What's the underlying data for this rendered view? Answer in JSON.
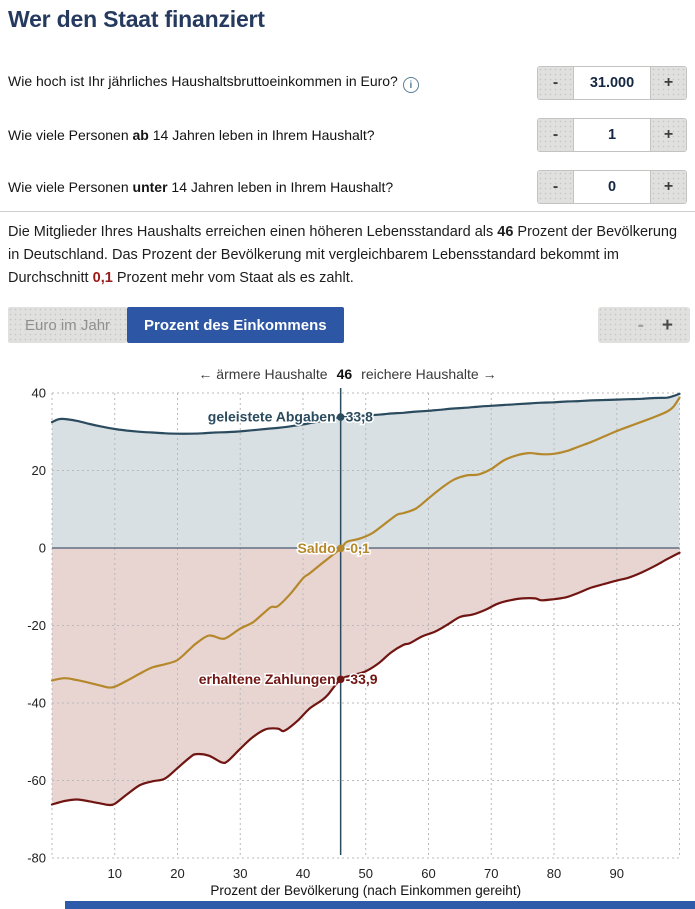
{
  "title": "Wer den Staat finanziert",
  "ui": {
    "minus": "-",
    "plus": "+",
    "info_icon": "i"
  },
  "questions": [
    {
      "pre": "Wie hoch ist Ihr jährliches Haushaltsbruttoeinkommen in Euro?",
      "bold": "",
      "post": "",
      "value": "31.000"
    },
    {
      "pre": "Wie viele Personen ",
      "bold": "ab",
      "post": " 14 Jahren leben in Ihrem Haushalt?",
      "value": "1"
    },
    {
      "pre": "Wie viele Personen ",
      "bold": "unter",
      "post": " 14 Jahren leben in Ihrem Haushalt?",
      "value": "0"
    }
  ],
  "summary": {
    "part1": "Die Mitglieder Ihres Haushalts erreichen einen höheren Lebensstandard als ",
    "bold1": "46",
    "part2": " Prozent der Bevölkerung in Deutschland. Das Prozent der Bevölkerung mit vergleichbarem Lebensstandard bekommt im Durchschnitt ",
    "bold2_red": "0,1",
    "part3": " Prozent mehr vom Staat als es zahlt."
  },
  "view_toggle": {
    "options": [
      {
        "label": "Euro im Jahr",
        "active": false
      },
      {
        "label": "Prozent des Einkommens",
        "active": true
      }
    ]
  },
  "zoom_control": {
    "minus_label": "-",
    "plus_label": "+"
  },
  "colors": {
    "accent_blue": "#2d56a4",
    "title_navy": "#253a5e",
    "red_highlight": "#9a1a1a"
  },
  "chart_data": {
    "type": "line",
    "header": {
      "left": "← ärmere Haushalte",
      "value": "46",
      "right": "reichere Haushalte →"
    },
    "xlabel": "Prozent der Bevölkerung (nach Einkommen gereiht)",
    "xlim": [
      0,
      100
    ],
    "ylim": [
      -80,
      40
    ],
    "x_ticks": [
      10,
      20,
      30,
      40,
      50,
      60,
      70,
      80,
      90
    ],
    "y_ticks": [
      40,
      20,
      0,
      -20,
      -40,
      -60,
      -80
    ],
    "grid": true,
    "marker_x": 46,
    "series": [
      {
        "name": "geleistete Abgaben",
        "color": "#2b4b5f",
        "fill": "#d8e0e3",
        "marker_y": 33.8,
        "value_label": "33,8",
        "points": [
          [
            0,
            32.5
          ],
          [
            1,
            33.2
          ],
          [
            2,
            33.3
          ],
          [
            4,
            32.8
          ],
          [
            6,
            32.0
          ],
          [
            8,
            31.3
          ],
          [
            10,
            30.7
          ],
          [
            12,
            30.3
          ],
          [
            14,
            30.0
          ],
          [
            16,
            29.8
          ],
          [
            18,
            29.6
          ],
          [
            20,
            29.5
          ],
          [
            22,
            29.5
          ],
          [
            24,
            29.6
          ],
          [
            26,
            29.8
          ],
          [
            28,
            29.9
          ],
          [
            30,
            30.1
          ],
          [
            32,
            30.4
          ],
          [
            34,
            30.7
          ],
          [
            36,
            31.0
          ],
          [
            38,
            31.4
          ],
          [
            40,
            31.9
          ],
          [
            42,
            32.5
          ],
          [
            44,
            33.1
          ],
          [
            46,
            33.8
          ],
          [
            48,
            34.0
          ],
          [
            50,
            34.2
          ],
          [
            52,
            34.4
          ],
          [
            54,
            34.7
          ],
          [
            56,
            34.9
          ],
          [
            58,
            35.2
          ],
          [
            60,
            35.4
          ],
          [
            62,
            35.7
          ],
          [
            64,
            36.0
          ],
          [
            66,
            36.2
          ],
          [
            68,
            36.5
          ],
          [
            70,
            36.7
          ],
          [
            72,
            36.9
          ],
          [
            74,
            37.1
          ],
          [
            76,
            37.3
          ],
          [
            78,
            37.5
          ],
          [
            80,
            37.6
          ],
          [
            82,
            37.8
          ],
          [
            84,
            37.9
          ],
          [
            86,
            38.1
          ],
          [
            88,
            38.2
          ],
          [
            90,
            38.3
          ],
          [
            92,
            38.4
          ],
          [
            94,
            38.5
          ],
          [
            96,
            38.7
          ],
          [
            98,
            38.8
          ],
          [
            99,
            39.2
          ],
          [
            100,
            39.8
          ]
        ]
      },
      {
        "name": "Saldo",
        "color": "#b5882c",
        "fill": null,
        "marker_y": -0.1,
        "value_label": "-0,1",
        "points": [
          [
            0,
            -34.2
          ],
          [
            2,
            -33.6
          ],
          [
            4,
            -34.1
          ],
          [
            6,
            -34.8
          ],
          [
            8,
            -35.6
          ],
          [
            9,
            -36.0
          ],
          [
            10,
            -35.8
          ],
          [
            12,
            -34.2
          ],
          [
            14,
            -32.4
          ],
          [
            16,
            -30.8
          ],
          [
            18,
            -30.0
          ],
          [
            20,
            -28.9
          ],
          [
            22,
            -26.0
          ],
          [
            23,
            -24.6
          ],
          [
            25,
            -22.6
          ],
          [
            27,
            -23.4
          ],
          [
            28,
            -23.0
          ],
          [
            30,
            -20.8
          ],
          [
            32,
            -19.2
          ],
          [
            34,
            -16.4
          ],
          [
            35,
            -15.2
          ],
          [
            36,
            -15.0
          ],
          [
            38,
            -11.8
          ],
          [
            40,
            -7.8
          ],
          [
            41,
            -6.6
          ],
          [
            43,
            -4.0
          ],
          [
            46,
            -0.1
          ],
          [
            47,
            1.6
          ],
          [
            49,
            2.4
          ],
          [
            51,
            3.8
          ],
          [
            53,
            6.2
          ],
          [
            55,
            8.6
          ],
          [
            56,
            9.0
          ],
          [
            58,
            10.2
          ],
          [
            60,
            12.8
          ],
          [
            62,
            15.4
          ],
          [
            64,
            17.6
          ],
          [
            66,
            18.7
          ],
          [
            68,
            19.0
          ],
          [
            70,
            20.4
          ],
          [
            72,
            22.6
          ],
          [
            74,
            23.9
          ],
          [
            76,
            24.5
          ],
          [
            78,
            24.2
          ],
          [
            80,
            24.3
          ],
          [
            82,
            25.0
          ],
          [
            84,
            26.2
          ],
          [
            86,
            27.4
          ],
          [
            88,
            28.8
          ],
          [
            90,
            30.2
          ],
          [
            92,
            31.4
          ],
          [
            94,
            32.6
          ],
          [
            96,
            33.8
          ],
          [
            98,
            35.2
          ],
          [
            99,
            36.4
          ],
          [
            100,
            38.8
          ]
        ]
      },
      {
        "name": "erhaltene Zahlungen",
        "color": "#701512",
        "fill": "#e8d5d2",
        "marker_y": -33.9,
        "value_label": "-33,9",
        "points": [
          [
            0,
            -66.2
          ],
          [
            2,
            -65.3
          ],
          [
            4,
            -64.9
          ],
          [
            6,
            -65.4
          ],
          [
            8,
            -66.0
          ],
          [
            9,
            -66.3
          ],
          [
            10,
            -66.0
          ],
          [
            12,
            -63.5
          ],
          [
            14,
            -61.2
          ],
          [
            16,
            -60.2
          ],
          [
            18,
            -59.5
          ],
          [
            20,
            -56.8
          ],
          [
            22,
            -54.0
          ],
          [
            23,
            -53.2
          ],
          [
            25,
            -53.6
          ],
          [
            27,
            -55.3
          ],
          [
            28,
            -55.0
          ],
          [
            30,
            -51.8
          ],
          [
            32,
            -48.8
          ],
          [
            34,
            -46.8
          ],
          [
            36,
            -46.6
          ],
          [
            37,
            -47.2
          ],
          [
            39,
            -44.8
          ],
          [
            41,
            -41.5
          ],
          [
            43,
            -39.3
          ],
          [
            44,
            -37.8
          ],
          [
            46,
            -33.9
          ],
          [
            48,
            -32.8
          ],
          [
            50,
            -31.8
          ],
          [
            52,
            -29.8
          ],
          [
            54,
            -27.0
          ],
          [
            56,
            -25.0
          ],
          [
            57,
            -24.6
          ],
          [
            59,
            -22.8
          ],
          [
            61,
            -21.6
          ],
          [
            63,
            -19.8
          ],
          [
            65,
            -17.8
          ],
          [
            67,
            -17.2
          ],
          [
            69,
            -16.0
          ],
          [
            71,
            -14.4
          ],
          [
            73,
            -13.5
          ],
          [
            75,
            -13.0
          ],
          [
            77,
            -13.0
          ],
          [
            78,
            -13.5
          ],
          [
            80,
            -13.2
          ],
          [
            82,
            -12.7
          ],
          [
            84,
            -11.5
          ],
          [
            86,
            -10.2
          ],
          [
            88,
            -9.3
          ],
          [
            90,
            -8.4
          ],
          [
            92,
            -7.6
          ],
          [
            94,
            -6.3
          ],
          [
            96,
            -4.7
          ],
          [
            98,
            -2.9
          ],
          [
            100,
            -1.2
          ]
        ]
      }
    ]
  }
}
